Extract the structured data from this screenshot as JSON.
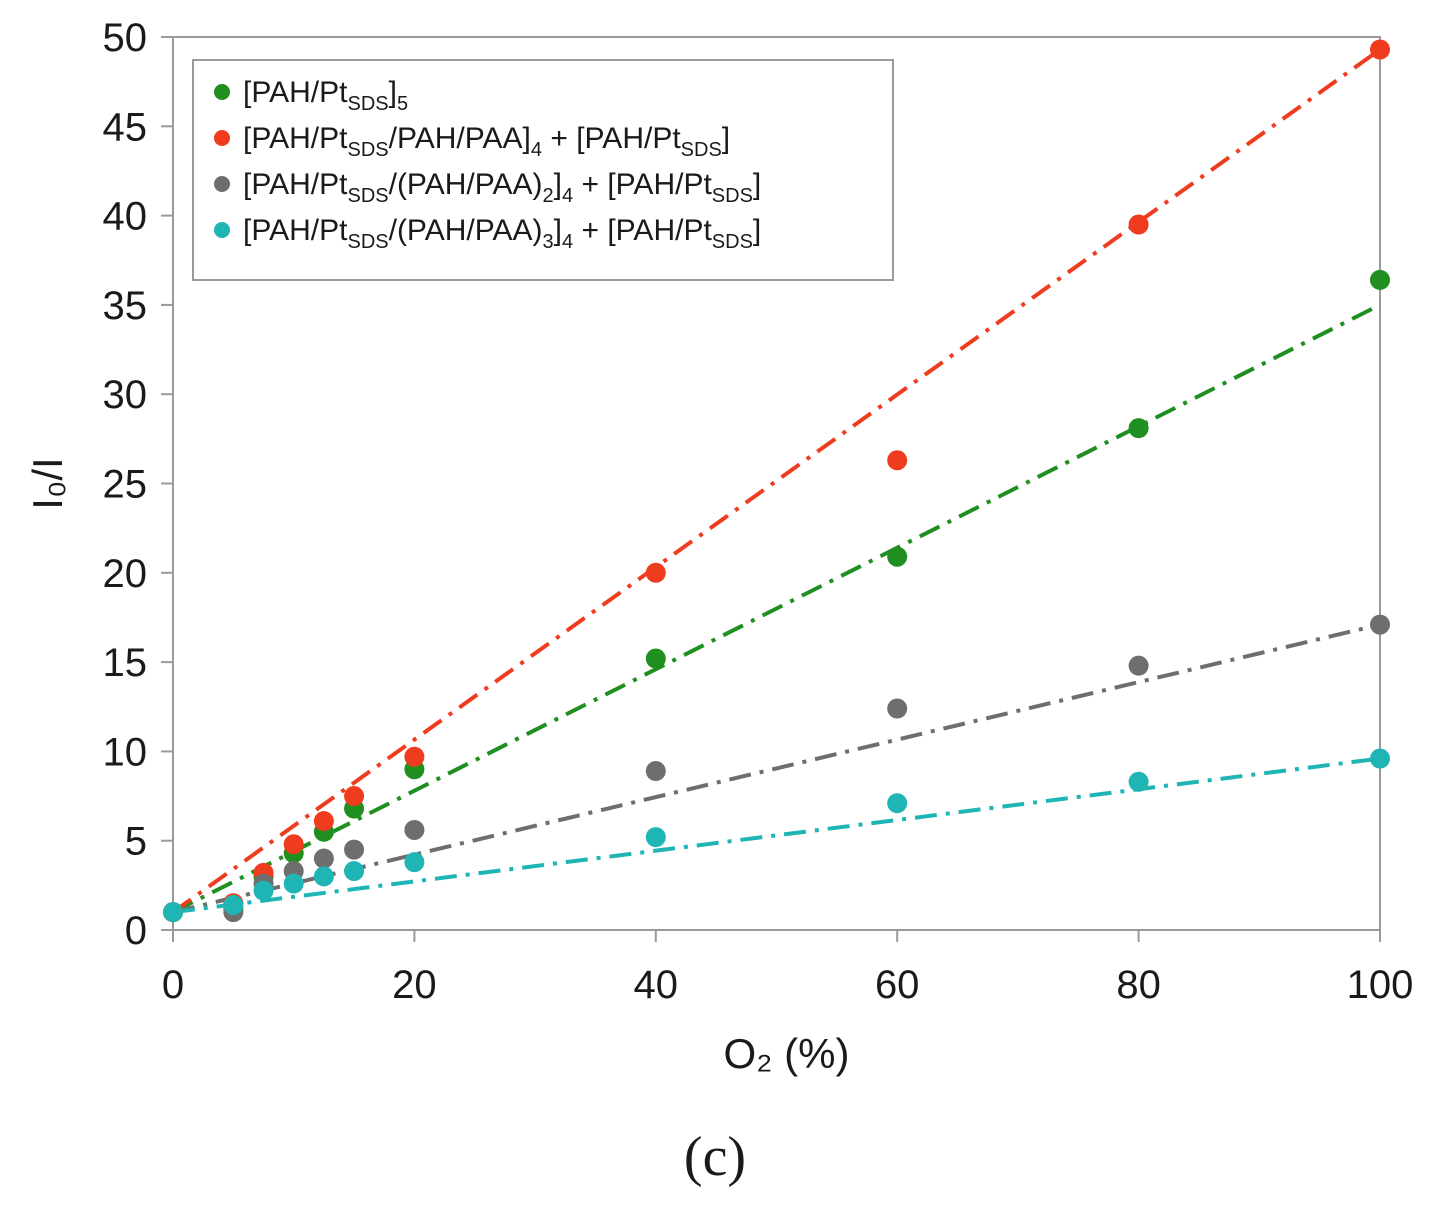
{
  "chart_data": {
    "type": "scatter",
    "xlabel": "O₂ (%)",
    "ylabel": "I₀/I",
    "xlim": [
      0,
      100
    ],
    "ylim": [
      0,
      50
    ],
    "xticks": [
      "0",
      "20",
      "40",
      "60",
      "80",
      "100"
    ],
    "yticks": [
      "0",
      "5",
      "10",
      "15",
      "20",
      "25",
      "30",
      "35",
      "40",
      "45",
      "50"
    ],
    "legend_position": "top-left",
    "grid": false,
    "series": [
      {
        "name": "[PAH/PtSDS]5",
        "label_parts": [
          {
            "t": "[PAH/Pt",
            "s": "n"
          },
          {
            "t": "SDS",
            "s": "sub"
          },
          {
            "t": "]",
            "s": "n"
          },
          {
            "t": "5",
            "s": "sub"
          }
        ],
        "color": "#1f8f1f",
        "x": [
          0,
          5,
          7.5,
          10,
          12.5,
          15,
          20,
          40,
          60,
          80,
          100
        ],
        "y": [
          1.0,
          1.2,
          3.0,
          4.3,
          5.5,
          6.8,
          9.0,
          15.2,
          20.9,
          28.1,
          36.4
        ],
        "fit": {
          "x0": 0,
          "y0": 1.0,
          "x1": 100,
          "y1": 35.0
        }
      },
      {
        "name": "[PAH/PtSDS/PAH/PAA]4 + [PAH/PtSDS]",
        "label_parts": [
          {
            "t": "[PAH/Pt",
            "s": "n"
          },
          {
            "t": "SDS",
            "s": "sub"
          },
          {
            "t": "/PAH/PAA]",
            "s": "n"
          },
          {
            "t": "4",
            "s": "sub"
          },
          {
            "t": " + [PAH/Pt",
            "s": "n"
          },
          {
            "t": "SDS",
            "s": "sub"
          },
          {
            "t": "]",
            "s": "n"
          }
        ],
        "color": "#f03c1e",
        "x": [
          0,
          5,
          7.5,
          10,
          12.5,
          15,
          20,
          40,
          60,
          80,
          100
        ],
        "y": [
          1.0,
          1.5,
          3.2,
          4.8,
          6.1,
          7.5,
          9.7,
          20.0,
          26.3,
          39.5,
          49.3
        ],
        "fit": {
          "x0": 0,
          "y0": 1.0,
          "x1": 100,
          "y1": 49.3
        }
      },
      {
        "name": "[PAH/PtSDS/(PAH/PAA)2]4 + [PAH/PtSDS]",
        "label_parts": [
          {
            "t": "[PAH/Pt",
            "s": "n"
          },
          {
            "t": "SDS",
            "s": "sub"
          },
          {
            "t": "/(PAH/PAA)",
            "s": "n"
          },
          {
            "t": "2",
            "s": "sub"
          },
          {
            "t": "]",
            "s": "n"
          },
          {
            "t": "4",
            "s": "sub"
          },
          {
            "t": " + [PAH/Pt",
            "s": "n"
          },
          {
            "t": "SDS",
            "s": "sub"
          },
          {
            "t": "]",
            "s": "n"
          }
        ],
        "color": "#6e6e6e",
        "x": [
          0,
          5,
          7.5,
          10,
          12.5,
          15,
          20,
          40,
          60,
          80,
          100
        ],
        "y": [
          1.0,
          1.0,
          2.6,
          3.3,
          4.0,
          4.5,
          5.6,
          8.9,
          12.4,
          14.8,
          17.1
        ],
        "fit": {
          "x0": 0,
          "y0": 1.0,
          "x1": 100,
          "y1": 17.1
        }
      },
      {
        "name": "[PAH/PtSDS/(PAH/PAA)3]4 + [PAH/PtSDS]",
        "label_parts": [
          {
            "t": "[PAH/Pt",
            "s": "n"
          },
          {
            "t": "SDS",
            "s": "sub"
          },
          {
            "t": "/(PAH/PAA)",
            "s": "n"
          },
          {
            "t": "3",
            "s": "sub"
          },
          {
            "t": "]",
            "s": "n"
          },
          {
            "t": "4",
            "s": "sub"
          },
          {
            "t": " + [PAH/Pt",
            "s": "n"
          },
          {
            "t": "SDS",
            "s": "sub"
          },
          {
            "t": "]",
            "s": "n"
          }
        ],
        "color": "#1fb5b5",
        "x": [
          0,
          5,
          7.5,
          10,
          12.5,
          15,
          20,
          40,
          60,
          80,
          100
        ],
        "y": [
          1.0,
          1.4,
          2.2,
          2.6,
          3.0,
          3.3,
          3.8,
          5.2,
          7.1,
          8.3,
          9.6
        ],
        "fit": {
          "x0": 0,
          "y0": 1.0,
          "x1": 100,
          "y1": 9.6
        }
      }
    ]
  },
  "panel_label": "(c)"
}
